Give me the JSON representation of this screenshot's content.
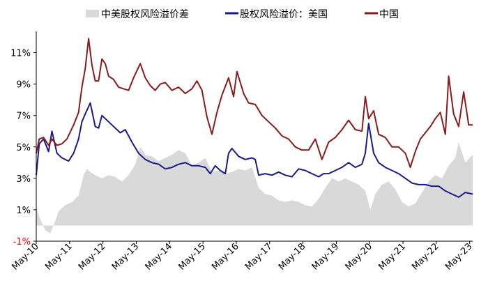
{
  "chart_data": {
    "type": "line",
    "title": "",
    "xlabel": "",
    "ylabel": "",
    "ylim": [
      -1,
      12
    ],
    "yticks": [
      "-1%",
      "1%",
      "3%",
      "5%",
      "7%",
      "9%",
      "11%"
    ],
    "ytick_values": [
      -1,
      1,
      3,
      5,
      7,
      9,
      11
    ],
    "ytick_colors": [
      "#ff0000",
      "#000000",
      "#000000",
      "#000000",
      "#000000",
      "#000000",
      "#000000"
    ],
    "x_range": [
      2010.33,
      2023.42
    ],
    "xticks": [
      "May-10",
      "May-11",
      "May-12",
      "May-13",
      "May-14",
      "May-15",
      "May-16",
      "May-17",
      "May-18",
      "May-19",
      "May-20",
      "May-21",
      "May-22",
      "May-23"
    ],
    "xtick_values": [
      2010.33,
      2011.33,
      2012.33,
      2013.33,
      2014.33,
      2015.33,
      2016.33,
      2017.33,
      2018.33,
      2019.33,
      2020.33,
      2021.33,
      2022.33,
      2023.33
    ],
    "legend_position": "top",
    "series": [
      {
        "name": "中美股权风险溢价差",
        "style": "area",
        "color": "#d9d9d9",
        "x": [
          2010.33,
          2010.45,
          2010.6,
          2010.75,
          2010.9,
          2011.0,
          2011.2,
          2011.4,
          2011.6,
          2011.75,
          2011.85,
          2011.95,
          2012.1,
          2012.3,
          2012.5,
          2012.7,
          2012.9,
          2013.1,
          2013.3,
          2013.45,
          2013.6,
          2013.8,
          2014.0,
          2014.2,
          2014.4,
          2014.6,
          2014.8,
          2015.0,
          2015.2,
          2015.4,
          2015.6,
          2015.8,
          2016.0,
          2016.2,
          2016.4,
          2016.6,
          2016.8,
          2017.0,
          2017.2,
          2017.4,
          2017.6,
          2017.8,
          2018.0,
          2018.2,
          2018.4,
          2018.6,
          2018.8,
          2019.0,
          2019.2,
          2019.4,
          2019.6,
          2019.8,
          2020.0,
          2020.2,
          2020.35,
          2020.5,
          2020.7,
          2020.9,
          2021.1,
          2021.3,
          2021.5,
          2021.7,
          2021.9,
          2022.1,
          2022.3,
          2022.5,
          2022.7,
          2022.9,
          2023.0,
          2023.2,
          2023.42
        ],
        "values": [
          1.2,
          0.4,
          -0.3,
          -0.5,
          0.3,
          0.9,
          1.3,
          1.5,
          1.9,
          3.2,
          3.6,
          3.4,
          3.2,
          3.0,
          3.2,
          3.1,
          2.8,
          3.2,
          3.9,
          5.0,
          4.5,
          4.4,
          4.1,
          4.3,
          4.5,
          4.8,
          4.6,
          3.8,
          4.0,
          4.3,
          3.4,
          3.5,
          3.3,
          3.4,
          3.6,
          3.5,
          3.7,
          2.4,
          2.0,
          1.9,
          1.6,
          1.5,
          1.6,
          1.5,
          1.3,
          1.2,
          1.7,
          2.4,
          3.0,
          2.8,
          3.0,
          2.8,
          2.6,
          2.2,
          1.0,
          2.0,
          2.6,
          2.8,
          2.3,
          1.5,
          1.2,
          1.4,
          2.1,
          2.8,
          3.2,
          3.0,
          3.8,
          4.3,
          5.3,
          4.0,
          4.5
        ]
      },
      {
        "name": "股权风险溢价：美国",
        "style": "line",
        "color": "#1a1a8c",
        "x": [
          2010.33,
          2010.42,
          2010.55,
          2010.7,
          2010.8,
          2010.95,
          2011.1,
          2011.3,
          2011.45,
          2011.6,
          2011.7,
          2011.8,
          2011.95,
          2012.1,
          2012.2,
          2012.3,
          2012.5,
          2012.7,
          2012.85,
          2013.0,
          2013.2,
          2013.4,
          2013.6,
          2013.8,
          2014.0,
          2014.2,
          2014.4,
          2014.6,
          2014.8,
          2015.0,
          2015.2,
          2015.4,
          2015.55,
          2015.7,
          2015.85,
          2016.0,
          2016.1,
          2016.2,
          2016.4,
          2016.6,
          2016.8,
          2016.9,
          2017.0,
          2017.2,
          2017.4,
          2017.6,
          2017.8,
          2018.0,
          2018.2,
          2018.4,
          2018.6,
          2018.8,
          2018.95,
          2019.1,
          2019.3,
          2019.5,
          2019.7,
          2019.9,
          2020.1,
          2020.2,
          2020.3,
          2020.45,
          2020.6,
          2020.8,
          2021.0,
          2021.2,
          2021.4,
          2021.6,
          2021.8,
          2022.0,
          2022.2,
          2022.4,
          2022.6,
          2022.8,
          2023.0,
          2023.2,
          2023.42
        ],
        "values": [
          3.2,
          5.2,
          5.5,
          4.7,
          6.0,
          4.6,
          4.3,
          4.1,
          4.6,
          5.5,
          6.6,
          7.1,
          7.8,
          6.3,
          6.2,
          7.0,
          6.6,
          6.2,
          5.9,
          6.1,
          5.3,
          4.6,
          4.2,
          4.0,
          3.9,
          3.6,
          3.7,
          3.9,
          4.0,
          3.8,
          3.8,
          3.7,
          3.3,
          3.8,
          3.5,
          3.3,
          4.6,
          4.9,
          4.4,
          4.2,
          4.3,
          4.2,
          3.2,
          3.3,
          3.2,
          3.4,
          3.2,
          3.1,
          3.6,
          3.5,
          3.3,
          3.1,
          3.3,
          3.3,
          3.5,
          3.7,
          4.0,
          3.7,
          3.9,
          4.6,
          6.5,
          4.6,
          4.0,
          3.7,
          3.5,
          3.3,
          3.0,
          2.7,
          2.6,
          2.6,
          2.5,
          2.5,
          2.2,
          2.0,
          1.8,
          2.1,
          2.0
        ]
      },
      {
        "name": "中国",
        "style": "line",
        "color": "#8b1a1a",
        "x": [
          2010.33,
          2010.42,
          2010.55,
          2010.7,
          2010.8,
          2010.95,
          2011.1,
          2011.25,
          2011.45,
          2011.6,
          2011.7,
          2011.8,
          2011.9,
          2012.0,
          2012.1,
          2012.2,
          2012.3,
          2012.4,
          2012.5,
          2012.65,
          2012.8,
          2012.95,
          2013.1,
          2013.25,
          2013.45,
          2013.6,
          2013.75,
          2013.9,
          2014.05,
          2014.2,
          2014.4,
          2014.6,
          2014.8,
          2015.0,
          2015.15,
          2015.3,
          2015.45,
          2015.6,
          2015.75,
          2015.9,
          2016.1,
          2016.25,
          2016.35,
          2016.55,
          2016.7,
          2016.9,
          2017.1,
          2017.3,
          2017.5,
          2017.7,
          2017.9,
          2018.1,
          2018.3,
          2018.5,
          2018.7,
          2018.9,
          2019.1,
          2019.3,
          2019.5,
          2019.7,
          2019.9,
          2020.1,
          2020.2,
          2020.3,
          2020.45,
          2020.6,
          2020.8,
          2021.0,
          2021.2,
          2021.4,
          2021.55,
          2021.7,
          2021.85,
          2022.0,
          2022.15,
          2022.3,
          2022.45,
          2022.6,
          2022.7,
          2022.85,
          2023.0,
          2023.15,
          2023.3,
          2023.42
        ],
        "values": [
          4.6,
          5.5,
          5.6,
          5.1,
          5.5,
          5.1,
          5.2,
          5.5,
          6.4,
          7.2,
          8.8,
          10.0,
          11.9,
          10.2,
          9.2,
          9.2,
          10.6,
          10.3,
          9.5,
          9.3,
          8.8,
          8.7,
          8.6,
          9.4,
          10.3,
          9.4,
          8.9,
          8.6,
          9.0,
          9.1,
          8.6,
          8.8,
          8.4,
          8.7,
          9.2,
          8.6,
          6.9,
          5.8,
          7.2,
          8.3,
          9.4,
          8.2,
          9.8,
          8.4,
          7.8,
          7.7,
          7.0,
          6.6,
          6.2,
          5.7,
          5.5,
          5.0,
          4.8,
          4.8,
          5.5,
          4.2,
          5.3,
          5.6,
          6.1,
          6.7,
          6.1,
          6.0,
          8.2,
          6.8,
          7.3,
          5.8,
          5.6,
          5.0,
          5.0,
          4.6,
          3.7,
          4.7,
          5.5,
          5.9,
          6.3,
          6.8,
          7.2,
          5.8,
          9.5,
          7.1,
          6.3,
          8.5,
          6.4,
          6.4
        ]
      }
    ]
  }
}
